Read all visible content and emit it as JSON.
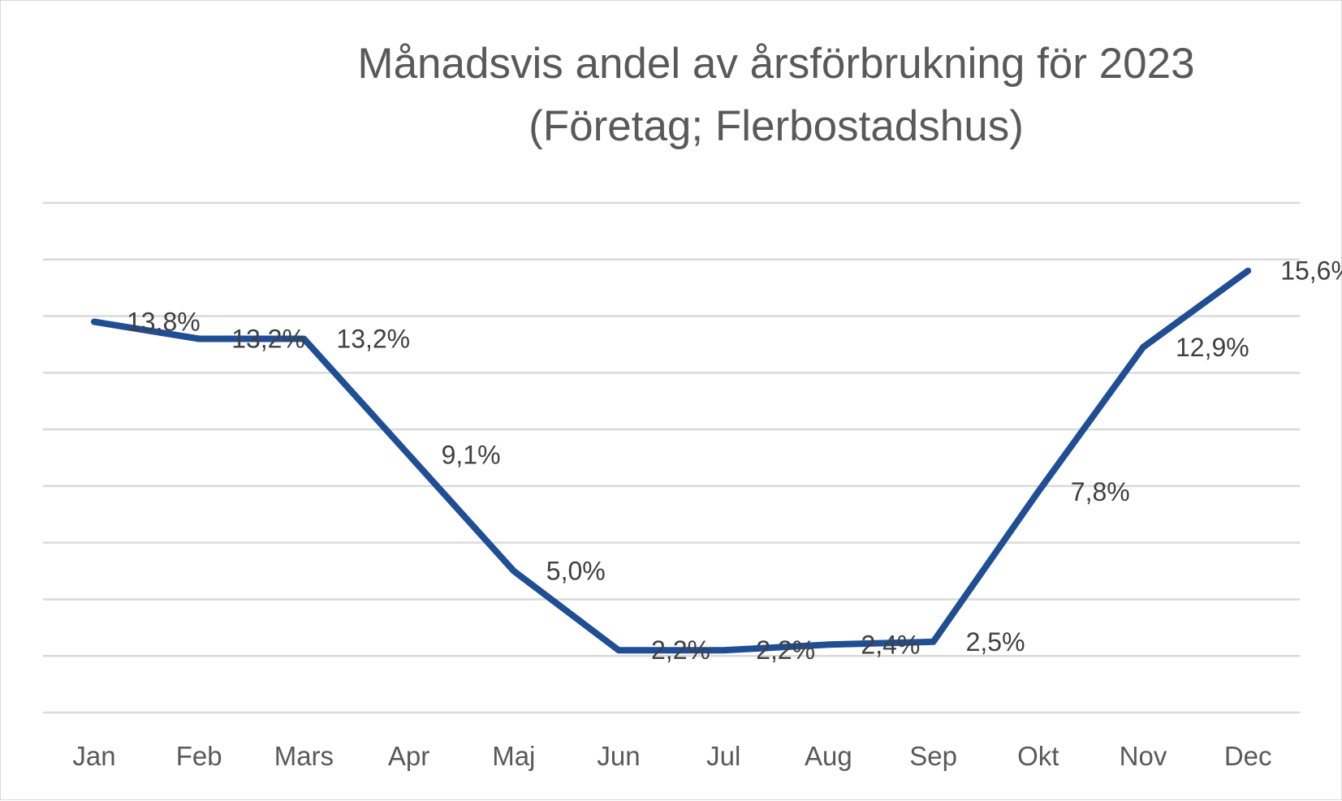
{
  "chart_data": {
    "type": "line",
    "title_lines": [
      "Månadsvis andel av årsförbrukning för 2023",
      "(Företag; Flerbostadshus)"
    ],
    "categories": [
      "Jan",
      "Feb",
      "Mars",
      "Apr",
      "Maj",
      "Jun",
      "Jul",
      "Aug",
      "Sep",
      "Okt",
      "Nov",
      "Dec"
    ],
    "series": [
      {
        "values": [
          13.8,
          13.2,
          13.2,
          9.1,
          5.0,
          2.2,
          2.2,
          2.4,
          2.5,
          7.8,
          12.9,
          15.6
        ],
        "labels": [
          "13,8%",
          "13,2%",
          "13,2%",
          "9,1%",
          "5,0%",
          "2,2%",
          "2,2%",
          "2,4%",
          "2,5%",
          "7,8%",
          "12,9%",
          "15,6%"
        ],
        "color": "#1f4e94"
      }
    ],
    "ylim": [
      0,
      18
    ],
    "ytick_step": 2,
    "grid": true,
    "legend": "none",
    "xlabel": "",
    "ylabel": ""
  }
}
